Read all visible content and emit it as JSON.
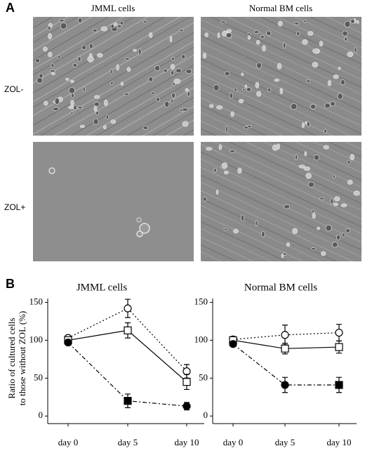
{
  "panel_a": {
    "label": "A",
    "columns": [
      "JMML cells",
      "Normal BM cells"
    ],
    "rows": [
      "ZOL-",
      "ZOL+"
    ]
  },
  "panel_b": {
    "label": "B"
  },
  "chart_data": [
    {
      "type": "line",
      "title": "JMML cells",
      "ylabel": [
        "Ratio of cultured cells",
        "to those without ZOL (%)"
      ],
      "categories": [
        "day 0",
        "day 5",
        "day 10"
      ],
      "ylim": [
        -10,
        155
      ],
      "yticks": [
        0,
        50,
        100,
        150
      ],
      "series": [
        {
          "color": "#000",
          "dash": "2,3",
          "marker": [
            "circle-open",
            "circle-open",
            "circle-open"
          ],
          "values": [
            103,
            142,
            59
          ],
          "errors": [
            3,
            12,
            9
          ]
        },
        {
          "color": "#000",
          "dash": "none",
          "marker": [
            "square-open",
            "square-open",
            "square-open"
          ],
          "values": [
            100,
            113,
            45
          ],
          "errors": [
            3,
            10,
            10
          ]
        },
        {
          "color": "#000",
          "dash": "6,3,2,3",
          "marker": [
            "circle",
            "square",
            "circle"
          ],
          "values": [
            97,
            20,
            13
          ],
          "errors": [
            2,
            9,
            5
          ]
        }
      ]
    },
    {
      "type": "line",
      "title": "Normal BM cells",
      "categories": [
        "day 0",
        "day 5",
        "day 10"
      ],
      "ylim": [
        -10,
        155
      ],
      "yticks": [
        0,
        50,
        100,
        150
      ],
      "series": [
        {
          "color": "#000",
          "dash": "2,3",
          "marker": [
            "circle-open",
            "circle-open",
            "circle-open"
          ],
          "values": [
            101,
            107,
            110
          ],
          "errors": [
            2,
            13,
            11
          ]
        },
        {
          "color": "#000",
          "dash": "none",
          "marker": [
            "square-open",
            "square-open",
            "square-open"
          ],
          "values": [
            100,
            89,
            91
          ],
          "errors": [
            2,
            7,
            8
          ]
        },
        {
          "color": "#000",
          "dash": "6,3,2,3",
          "marker": [
            "circle",
            "circle",
            "square"
          ],
          "values": [
            95,
            41,
            41
          ],
          "errors": [
            2,
            10,
            10
          ]
        }
      ]
    }
  ]
}
